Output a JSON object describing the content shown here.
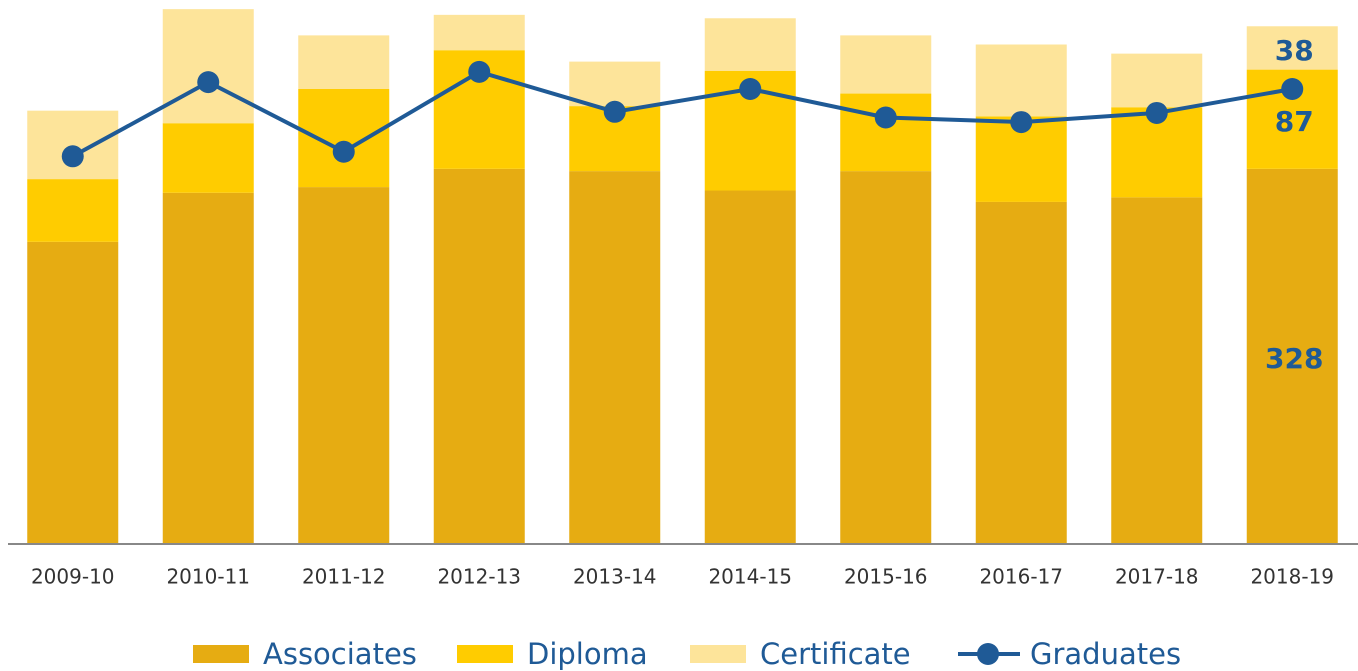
{
  "chart_data": {
    "type": "bar",
    "stacked": true,
    "categories": [
      "2009-10",
      "2010-11",
      "2011-12",
      "2012-13",
      "2013-14",
      "2014-15",
      "2015-16",
      "2016-17",
      "2017-18",
      "2018-19"
    ],
    "series": [
      {
        "name": "Associates",
        "color": "#e6ac12",
        "values": [
          264,
          307,
          312,
          328,
          326,
          309,
          326,
          299,
          303,
          328
        ]
      },
      {
        "name": "Diploma",
        "color": "#ffcc00",
        "values": [
          55,
          61,
          86,
          104,
          57,
          105,
          68,
          75,
          79,
          87
        ]
      },
      {
        "name": "Certificate",
        "color": "#fde49a",
        "values": [
          60,
          100,
          47,
          31,
          39,
          46,
          51,
          63,
          47,
          38
        ]
      },
      {
        "name": "Graduates",
        "type": "line",
        "color": "#1f5a96",
        "values": [
          339,
          404,
          343,
          413,
          378,
          398,
          373,
          369,
          377,
          398
        ]
      }
    ],
    "ylim": [
      0,
      469
    ],
    "legend": "bottom"
  }
}
